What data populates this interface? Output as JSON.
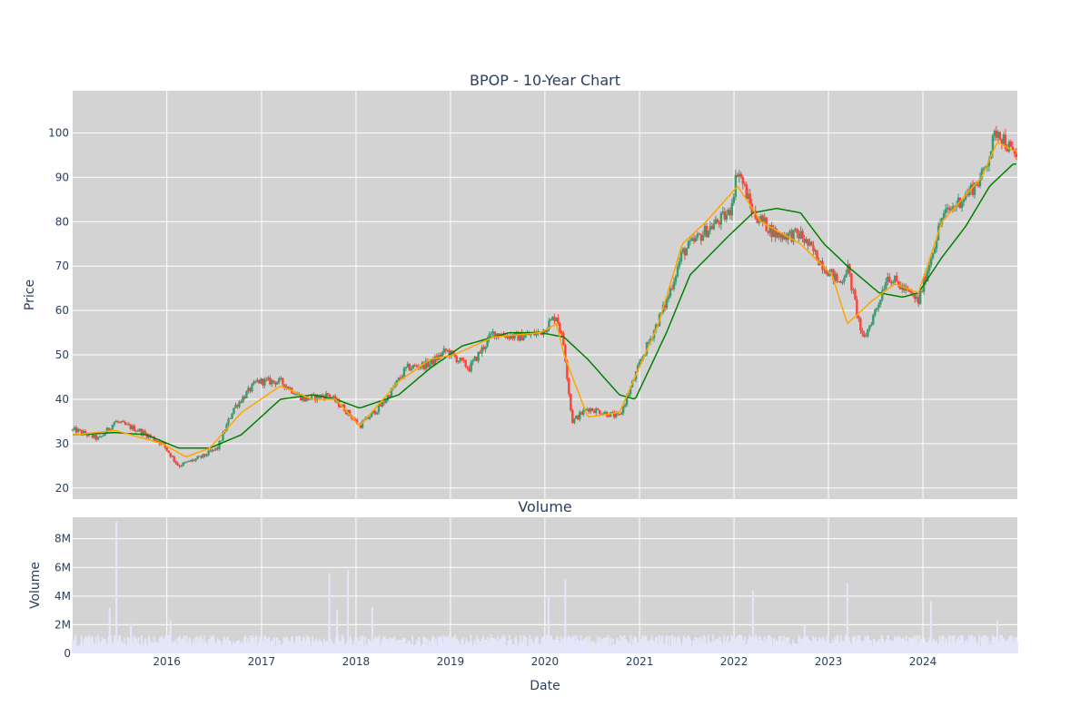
{
  "chart_data": [
    {
      "type": "candlestick",
      "title": "BPOP - 10-Year Chart",
      "xlabel": "",
      "ylabel": "Price",
      "ylim": [
        17.5,
        109.5
      ],
      "yticks": [
        20,
        30,
        40,
        50,
        60,
        70,
        80,
        90,
        100
      ],
      "xlim": [
        "2015-01-02",
        "2024-12-31"
      ],
      "grid": true,
      "colors": {
        "background": "#d3d3d3",
        "grid": "#ffffff",
        "up": "#3d9970",
        "down": "#ff4136",
        "ma_short": "#ffa500",
        "ma_long": "#008000"
      },
      "price_close_approx": {
        "x": [
          "2015-01",
          "2015-04",
          "2015-06",
          "2015-09",
          "2015-12",
          "2016-02",
          "2016-05",
          "2016-07",
          "2016-09",
          "2016-12",
          "2017-03",
          "2017-06",
          "2017-09",
          "2017-11",
          "2018-01",
          "2018-04",
          "2018-07",
          "2018-10",
          "2018-12",
          "2019-03",
          "2019-06",
          "2019-09",
          "2019-12",
          "2020-02",
          "2020-03",
          "2020-04",
          "2020-06",
          "2020-10",
          "2021-01",
          "2021-04",
          "2021-06",
          "2021-09",
          "2021-12",
          "2022-01",
          "2022-03",
          "2022-06",
          "2022-09",
          "2022-12",
          "2023-02",
          "2023-03",
          "2023-05",
          "2023-07",
          "2023-08",
          "2023-10",
          "2023-12",
          "2024-03",
          "2024-06",
          "2024-08",
          "2024-10",
          "2024-12"
        ],
        "values": [
          33,
          31,
          35,
          33,
          30,
          25,
          27,
          29,
          38,
          44,
          44,
          40,
          41,
          38,
          34,
          39,
          47,
          48,
          51,
          47,
          55,
          54,
          55,
          59,
          52,
          35,
          38,
          36,
          50,
          62,
          73,
          78,
          82,
          92,
          82,
          77,
          77,
          70,
          66,
          70,
          53,
          62,
          68,
          65,
          62,
          81,
          86,
          90,
          101,
          95
        ]
      },
      "moving_average_short": {
        "x": [
          "2015-01",
          "2015-06",
          "2015-12",
          "2016-03",
          "2016-06",
          "2016-10",
          "2017-03",
          "2017-07",
          "2017-10",
          "2018-01",
          "2018-06",
          "2018-10",
          "2019-01",
          "2019-06",
          "2019-12",
          "2020-02",
          "2020-03",
          "2020-06",
          "2020-10",
          "2021-03",
          "2021-06",
          "2021-09",
          "2022-01",
          "2022-04",
          "2022-09",
          "2023-01",
          "2023-03",
          "2023-06",
          "2023-09",
          "2023-12",
          "2024-03",
          "2024-08",
          "2024-10",
          "2024-12"
        ],
        "values": [
          32,
          33,
          30,
          27,
          29,
          37,
          43,
          40,
          40,
          34,
          44,
          49,
          50,
          54,
          55,
          57,
          50,
          36,
          37,
          57,
          75,
          80,
          88,
          80,
          75,
          68,
          57,
          62,
          66,
          64,
          80,
          90,
          98,
          96
        ]
      },
      "moving_average_long": {
        "x": [
          "2015-01",
          "2015-06",
          "2015-10",
          "2016-02",
          "2016-06",
          "2016-10",
          "2017-03",
          "2017-07",
          "2017-10",
          "2018-01",
          "2018-06",
          "2018-10",
          "2019-02",
          "2019-08",
          "2019-12",
          "2020-03",
          "2020-06",
          "2020-10",
          "2020-12",
          "2021-04",
          "2021-07",
          "2021-12",
          "2022-03",
          "2022-06",
          "2022-09",
          "2022-12",
          "2023-03",
          "2023-05",
          "2023-07",
          "2023-10",
          "2023-12",
          "2024-03",
          "2024-06",
          "2024-09",
          "2024-12"
        ],
        "values": [
          32,
          32.5,
          32,
          29,
          29,
          32,
          40,
          41,
          40,
          38,
          41,
          47,
          52,
          55,
          55,
          54,
          49,
          41,
          40,
          55,
          68,
          77,
          82,
          83,
          82,
          75,
          70,
          67,
          64,
          63,
          64,
          72,
          79,
          88,
          93
        ]
      }
    },
    {
      "type": "bar",
      "title": "Volume",
      "xlabel": "Date",
      "ylabel": "Volume",
      "ylim": [
        0,
        9500000
      ],
      "yticks": [
        0,
        2000000,
        4000000,
        6000000,
        8000000
      ],
      "ytick_labels": [
        "0",
        "2M",
        "4M",
        "6M",
        "8M"
      ],
      "xticks": [
        "2016",
        "2017",
        "2018",
        "2019",
        "2020",
        "2021",
        "2022",
        "2023",
        "2024"
      ],
      "colors": {
        "bar": "#e6e6fa"
      },
      "spikes": {
        "x": [
          "2015-05-25",
          "2015-06-20",
          "2015-08-15",
          "2016-01-15",
          "2017-09-20",
          "2017-10-20",
          "2017-12-01",
          "2018-03-05",
          "2020-01-15",
          "2020-03-20",
          "2022-03-15",
          "2022-10-01",
          "2023-03-15",
          "2024-02-01",
          "2024-10-15"
        ],
        "values": [
          3200000,
          9200000,
          2100000,
          2300000,
          5600000,
          3000000,
          5800000,
          3200000,
          4000000,
          5200000,
          4400000,
          2000000,
          4900000,
          3600000,
          2300000
        ]
      }
    }
  ]
}
